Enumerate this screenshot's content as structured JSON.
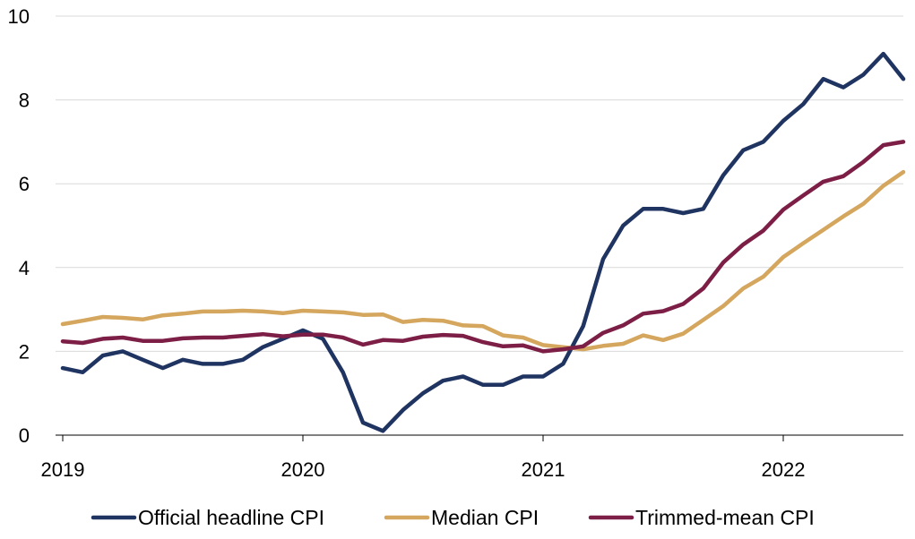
{
  "chart_data": {
    "type": "line",
    "title": "",
    "xlabel": "",
    "ylabel": "",
    "ylim": [
      0,
      10
    ],
    "yticks": [
      "0",
      "2",
      "4",
      "6",
      "8",
      "10"
    ],
    "xticks": [
      {
        "label": "2019",
        "x": 2019.0
      },
      {
        "label": "2020",
        "x": 2020.0
      },
      {
        "label": "2021",
        "x": 2021.0
      },
      {
        "label": "2022",
        "x": 2022.0
      }
    ],
    "x_start": "2019-01",
    "x_step_months": 1,
    "grid": true,
    "legend_position": "bottom",
    "series": [
      {
        "name": "Official headline CPI",
        "color": "#1f3461",
        "values": [
          1.6,
          1.5,
          1.9,
          2.0,
          1.8,
          1.6,
          1.8,
          1.7,
          1.7,
          1.8,
          2.1,
          2.3,
          2.5,
          2.3,
          1.5,
          0.3,
          0.1,
          0.6,
          1.0,
          1.3,
          1.4,
          1.2,
          1.2,
          1.4,
          1.4,
          1.7,
          2.6,
          4.2,
          5.0,
          5.4,
          5.4,
          5.3,
          5.4,
          6.2,
          6.8,
          7.0,
          7.5,
          7.9,
          8.5,
          8.3,
          8.6,
          9.1,
          8.5
        ]
      },
      {
        "name": "Median CPI",
        "color": "#d4a65e",
        "values": [
          2.65,
          2.73,
          2.82,
          2.8,
          2.76,
          2.86,
          2.9,
          2.95,
          2.95,
          2.97,
          2.95,
          2.91,
          2.97,
          2.95,
          2.93,
          2.87,
          2.88,
          2.7,
          2.75,
          2.73,
          2.62,
          2.6,
          2.38,
          2.33,
          2.15,
          2.1,
          2.05,
          2.13,
          2.18,
          2.38,
          2.27,
          2.42,
          2.75,
          3.08,
          3.5,
          3.78,
          4.25,
          4.58,
          4.9,
          5.22,
          5.52,
          5.95,
          6.28
        ]
      },
      {
        "name": "Trimmed-mean CPI",
        "color": "#7c1e45",
        "values": [
          2.24,
          2.2,
          2.3,
          2.33,
          2.25,
          2.25,
          2.31,
          2.33,
          2.33,
          2.37,
          2.41,
          2.36,
          2.4,
          2.4,
          2.33,
          2.16,
          2.27,
          2.25,
          2.35,
          2.39,
          2.37,
          2.22,
          2.12,
          2.14,
          2.0,
          2.05,
          2.12,
          2.44,
          2.62,
          2.9,
          2.96,
          3.13,
          3.5,
          4.12,
          4.55,
          4.88,
          5.38,
          5.72,
          6.05,
          6.18,
          6.52,
          6.92,
          7.0
        ]
      }
    ]
  }
}
